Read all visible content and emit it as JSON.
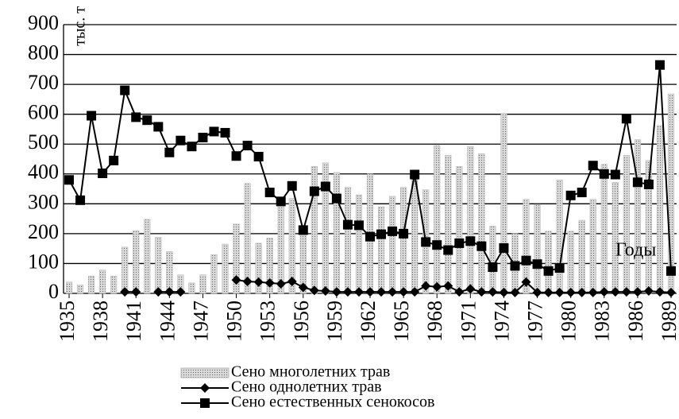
{
  "chart_data": {
    "type": "bar_line",
    "annotations": [
      "тыс. т",
      "Годы"
    ],
    "x": [
      1935,
      1936,
      1937,
      1938,
      1939,
      1940,
      1941,
      1942,
      1943,
      1944,
      1945,
      1946,
      1947,
      1948,
      1949,
      1950,
      1951,
      1952,
      1953,
      1954,
      1955,
      1956,
      1957,
      1958,
      1959,
      1960,
      1961,
      1962,
      1963,
      1964,
      1965,
      1966,
      1967,
      1968,
      1969,
      1970,
      1971,
      1972,
      1973,
      1974,
      1975,
      1976,
      1977,
      1978,
      1979,
      1980,
      1981,
      1982,
      1983,
      1984,
      1985,
      1986,
      1987,
      1988,
      1989
    ],
    "xlim": [
      1934.5,
      1989.5
    ],
    "xticks": [
      1935,
      1938,
      1941,
      1944,
      1947,
      1950,
      1953,
      1956,
      1959,
      1962,
      1965,
      1968,
      1971,
      1974,
      1977,
      1980,
      1983,
      1986,
      1989
    ],
    "ylim": [
      0,
      900
    ],
    "yticks": [
      0,
      100,
      200,
      300,
      400,
      500,
      600,
      700,
      800,
      900
    ],
    "grid": true,
    "series": [
      {
        "name": "Сено многолетних трав",
        "type": "bar",
        "color": "#b8b8b8",
        "values": [
          38,
          28,
          58,
          78,
          58,
          155,
          210,
          248,
          188,
          140,
          62,
          35,
          62,
          130,
          165,
          232,
          368,
          168,
          185,
          300,
          318,
          210,
          425,
          437,
          405,
          355,
          330,
          400,
          290,
          325,
          355,
          400,
          347,
          495,
          462,
          425,
          492,
          468,
          225,
          603,
          200,
          315,
          298,
          208,
          380,
          208,
          245,
          315,
          432,
          372,
          462,
          515,
          445,
          562,
          668
        ]
      },
      {
        "name": "Сено однолетних трав",
        "type": "line",
        "marker": "diamond",
        "color": "#000000",
        "values": [
          null,
          null,
          null,
          null,
          null,
          5,
          5,
          null,
          5,
          5,
          5,
          null,
          null,
          null,
          null,
          45,
          40,
          38,
          35,
          32,
          40,
          20,
          10,
          8,
          5,
          5,
          5,
          5,
          5,
          5,
          5,
          5,
          25,
          22,
          25,
          5,
          15,
          5,
          5,
          3,
          3,
          38,
          3,
          3,
          3,
          3,
          3,
          3,
          5,
          5,
          5,
          5,
          8,
          5,
          3
        ]
      },
      {
        "name": "Сено естественных сенокосов",
        "type": "line",
        "marker": "square",
        "color": "#000000",
        "values": [
          380,
          312,
          595,
          402,
          445,
          680,
          590,
          580,
          558,
          472,
          512,
          492,
          522,
          542,
          538,
          460,
          495,
          458,
          338,
          308,
          360,
          212,
          342,
          358,
          318,
          230,
          228,
          190,
          198,
          208,
          200,
          398,
          172,
          162,
          145,
          168,
          175,
          158,
          88,
          152,
          92,
          110,
          98,
          75,
          85,
          328,
          338,
          428,
          400,
          398,
          585,
          372,
          365,
          765,
          75
        ]
      }
    ]
  }
}
